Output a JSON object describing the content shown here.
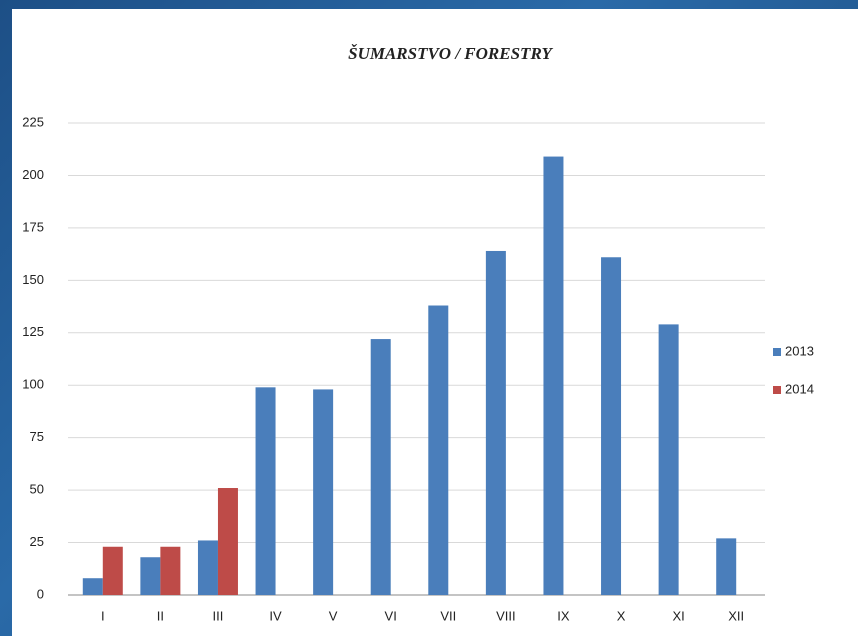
{
  "chart_data": {
    "type": "bar",
    "title": "ŠUMARSTVO / FORESTRY",
    "categories": [
      "I",
      "II",
      "III",
      "IV",
      "V",
      "VI",
      "VII",
      "VIII",
      "IX",
      "X",
      "XI",
      "XII"
    ],
    "series": [
      {
        "name": "2013",
        "color": "#4a7ebb",
        "values": [
          8,
          18,
          26,
          99,
          98,
          122,
          138,
          164,
          209,
          161,
          129,
          27
        ]
      },
      {
        "name": "2014",
        "color": "#be4b48",
        "values": [
          23,
          23,
          51,
          null,
          null,
          null,
          null,
          null,
          null,
          null,
          null,
          null
        ]
      }
    ],
    "ylim": [
      0,
      225
    ],
    "yticks": [
      0,
      25,
      50,
      75,
      100,
      125,
      150,
      175,
      200,
      225
    ],
    "grid": true,
    "legend": "right"
  }
}
